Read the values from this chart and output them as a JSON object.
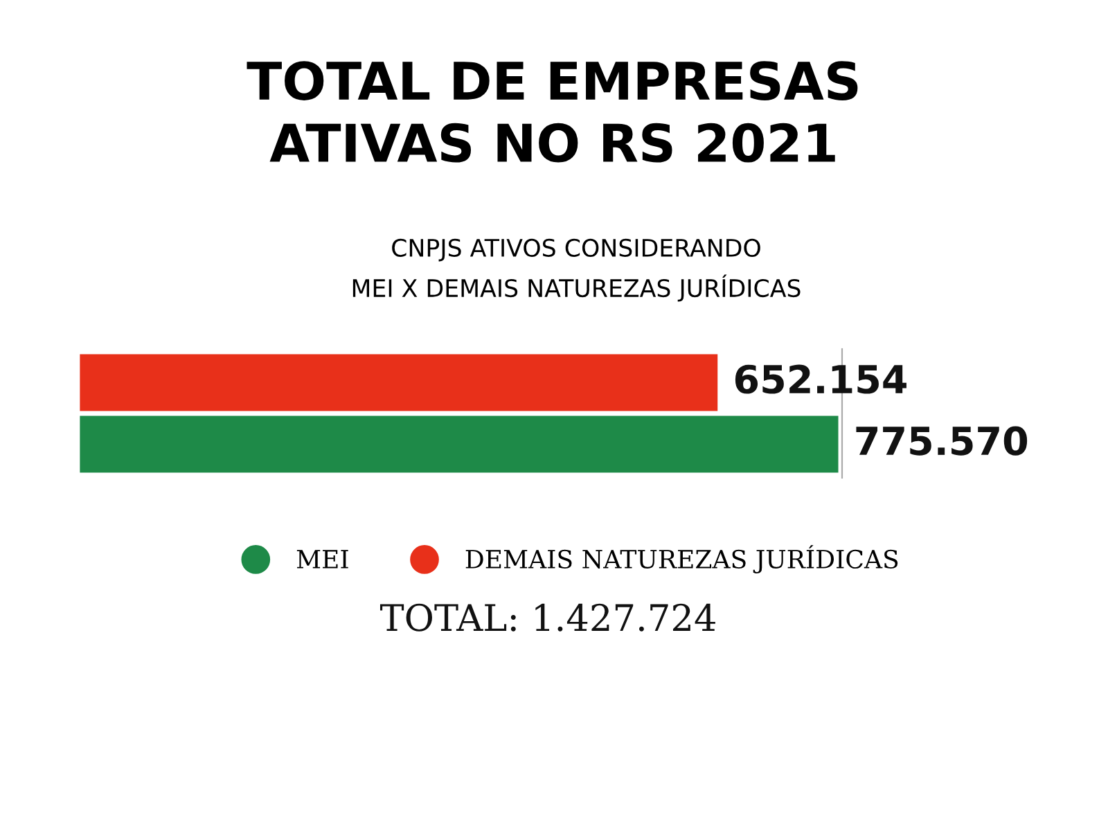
{
  "chart_data": {
    "type": "bar",
    "orientation": "horizontal",
    "title": "TOTAL DE EMPRESAS\nATIVAS NO RS 2021",
    "subtitle": "CNPJS ATIVOS CONSIDERANDO\nMEI X DEMAIS NATUREZAS JURÍDICAS",
    "categories": [
      null
    ],
    "series": [
      {
        "name": "DEMAIS NATUREZAS JURÍDICAS",
        "color": "#e8301a",
        "values": [
          652154
        ],
        "value_labels": [
          "652.154"
        ]
      },
      {
        "name": "MEI",
        "color": "#1e8a48",
        "values": [
          775570
        ],
        "value_labels": [
          "775.570"
        ]
      }
    ],
    "legend": "bottom",
    "marker": "circle",
    "annotations": [
      "TOTAL: 1.427.724"
    ]
  }
}
